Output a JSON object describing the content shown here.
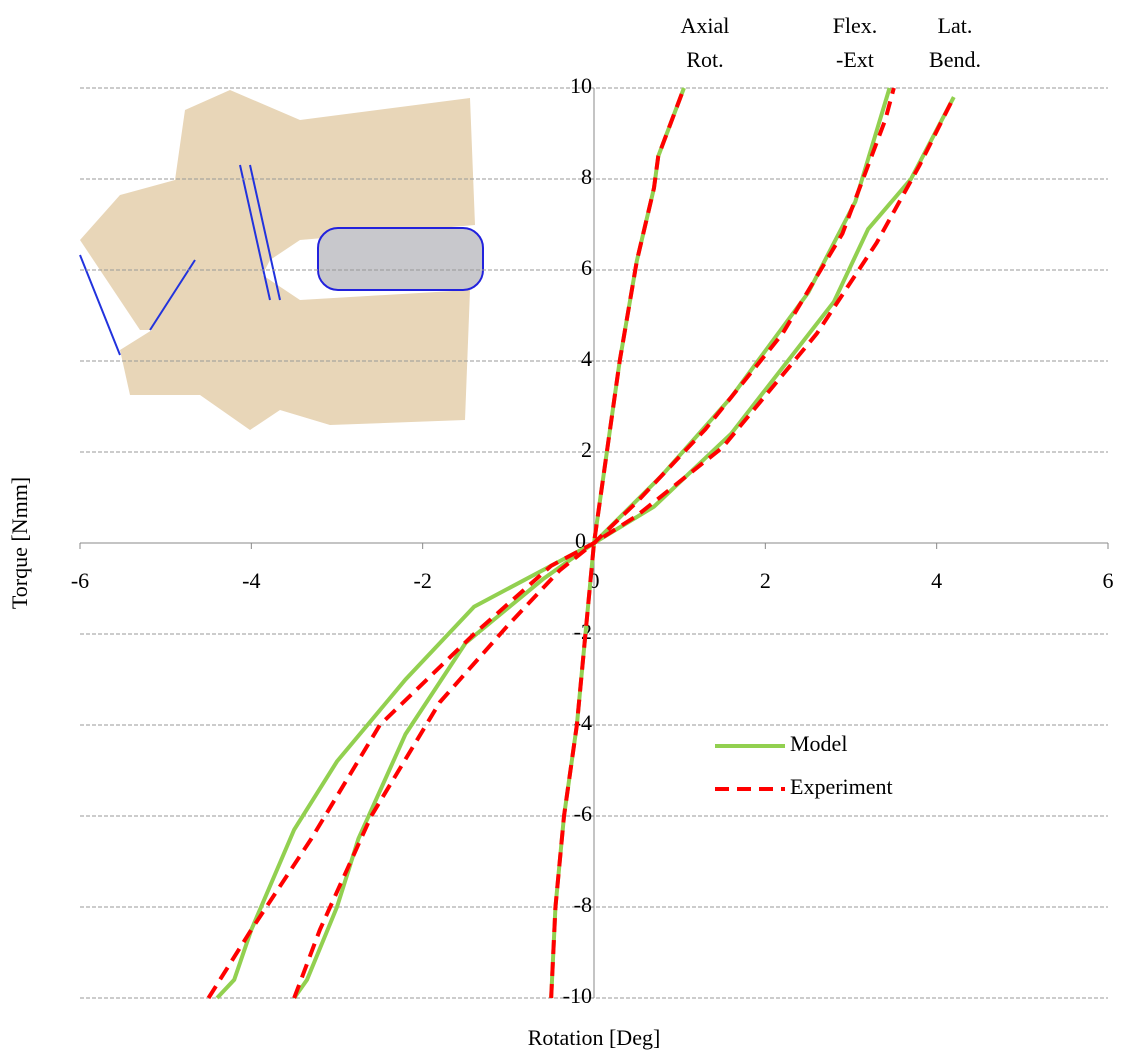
{
  "chart_data": {
    "type": "line",
    "x_label": "Rotation [Deg]",
    "y_label": "Torque [Nmm]",
    "xlim": [
      -6,
      6
    ],
    "xticks": [
      -6,
      -4,
      -2,
      0,
      2,
      4,
      6
    ],
    "ylim": [
      -10,
      10
    ],
    "yticks": [
      -10,
      -8,
      -6,
      -4,
      -2,
      0,
      2,
      4,
      6,
      8,
      10
    ],
    "grid": true,
    "legend": "lower right",
    "annotations": [
      [
        "Axial",
        "Rot."
      ],
      [
        "Flex.",
        "-Ext"
      ],
      [
        "Lat.",
        "Bend."
      ]
    ],
    "series": [
      {
        "name": "Model",
        "color": "#92d050",
        "dashed": false,
        "lines": [
          {
            "x": [
              -0.5,
              -0.45,
              -0.35,
              -0.2,
              -0.1,
              0,
              0.15,
              0.3,
              0.5,
              0.7,
              0.75,
              1.05
            ],
            "values": [
              -10,
              -8,
              -6,
              -4,
              -2,
              0,
              2,
              4,
              6.2,
              7.8,
              8.5,
              10
            ]
          },
          {
            "x": [
              -3.5,
              -3.35,
              -3,
              -2.75,
              -2.2,
              -1.5,
              -0.6,
              0,
              0.8,
              1.6,
              2.5,
              3.05,
              3.45
            ],
            "values": [
              -10,
              -9.6,
              -8,
              -6.5,
              -4.2,
              -2.2,
              -0.8,
              0,
              1.5,
              3.2,
              5.5,
              7.5,
              10
            ]
          },
          {
            "x": [
              -4.4,
              -4.2,
              -4,
              -3.5,
              -3,
              -2.2,
              -1.4,
              0,
              0.7,
              1.6,
              2.8,
              3.2,
              3.7,
              4.2
            ],
            "values": [
              -10,
              -9.6,
              -8.5,
              -6.3,
              -4.8,
              -3,
              -1.4,
              0,
              0.8,
              2.4,
              5.3,
              6.9,
              8,
              9.8
            ]
          }
        ]
      },
      {
        "name": "Experiment",
        "color": "#ff0000",
        "dashed": true,
        "lines": [
          {
            "x": [
              -0.5,
              -0.45,
              -0.35,
              -0.2,
              -0.1,
              0,
              0.15,
              0.3,
              0.5,
              0.7,
              0.75,
              1.05
            ],
            "values": [
              -10,
              -8,
              -6,
              -4,
              -2,
              0,
              2,
              4,
              6.2,
              7.8,
              8.5,
              10
            ]
          },
          {
            "x": [
              -3.5,
              -3.2,
              -2.6,
              -1.8,
              -1,
              -0.4,
              0,
              0.5,
              1.3,
              2.2,
              2.9,
              3.4,
              3.5
            ],
            "values": [
              -10,
              -8.5,
              -6,
              -3.5,
              -1.8,
              -0.6,
              0,
              0.9,
              2.5,
              4.6,
              6.8,
              9.3,
              10
            ]
          },
          {
            "x": [
              -4.5,
              -4,
              -3.3,
              -2.5,
              -1.4,
              -0.5,
              0,
              0.5,
              1.5,
              2.6,
              3.3,
              3.8,
              4.2
            ],
            "values": [
              -10,
              -8.5,
              -6.5,
              -4,
              -2,
              -0.5,
              0,
              0.6,
              2.1,
              4.6,
              6.6,
              8.3,
              9.8
            ]
          }
        ]
      }
    ]
  }
}
